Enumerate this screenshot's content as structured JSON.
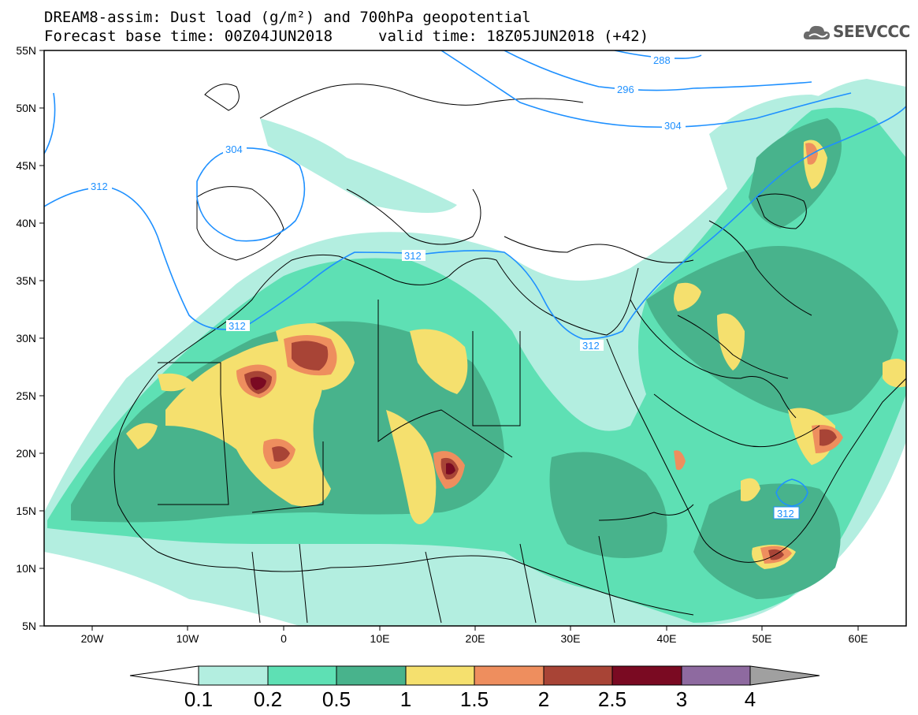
{
  "header": {
    "title_line1": "DREAM8-assim: Dust load (g/m²) and 700hPa geopotential",
    "title_line2": "Forecast base time: 00Z04JUN2018",
    "valid_time": "valid time: 18Z05JUN2018 (+42)",
    "logo_text": "SEEVCCC",
    "logo_icon": "cloud-icon"
  },
  "map": {
    "lon_range": [
      -25,
      65
    ],
    "lat_range": [
      5,
      55
    ],
    "lat_labels": [
      "55N",
      "50N",
      "45N",
      "40N",
      "35N",
      "30N",
      "25N",
      "20N",
      "15N",
      "10N",
      "5N"
    ],
    "lon_labels": [
      "20W",
      "10W",
      "0",
      "10E",
      "20E",
      "30E",
      "40E",
      "50E",
      "60E"
    ],
    "contour_labels": [
      "288",
      "296",
      "304",
      "304",
      "312",
      "312",
      "312",
      "312",
      "312"
    ],
    "contour_color": "#1e90ff"
  },
  "colorbar": {
    "labels": [
      "0.1",
      "0.2",
      "0.5",
      "1",
      "1.5",
      "2",
      "2.5",
      "3",
      "4"
    ],
    "colors": [
      "#b3eee0",
      "#5ee0b4",
      "#48b38c",
      "#f5e06e",
      "#ee8e5e",
      "#a84436",
      "#7a0a22",
      "#8e6aa0",
      "#a0a0a0"
    ]
  }
}
